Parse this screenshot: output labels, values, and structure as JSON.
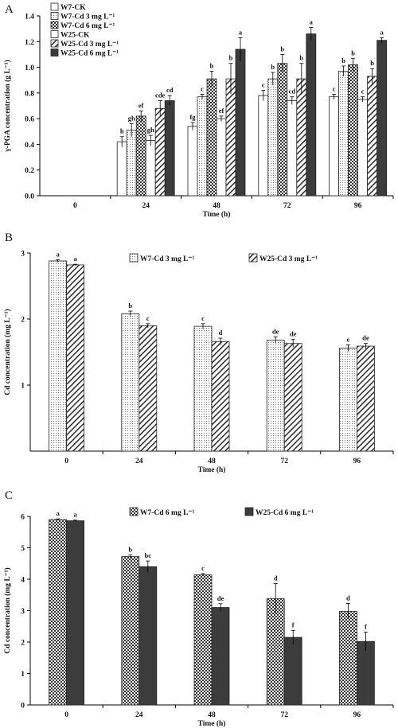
{
  "chart_data": [
    {
      "panel": "A",
      "type": "bar",
      "categories": [
        "0",
        "24",
        "48",
        "72",
        "96"
      ],
      "xlabel": "Time (h)",
      "ylabel": "γ-PGA concentration (g L⁻¹)",
      "ylim": [
        0,
        1.4
      ],
      "yticks": [
        "0.0",
        "0.2",
        "0.4",
        "0.6",
        "0.8",
        "1.0",
        "1.2",
        "1.4"
      ],
      "legend_position": "top-left",
      "series": [
        {
          "name": "W7-CK",
          "pattern": "white",
          "values": [
            null,
            0.42,
            0.54,
            0.78,
            0.77
          ],
          "errors": [
            null,
            0.04,
            0.03,
            0.04,
            0.02
          ],
          "labels": [
            "",
            "h",
            "fg",
            "c",
            "c"
          ]
        },
        {
          "name": "W7-Cd 3 mg L⁻¹",
          "pattern": "dots",
          "values": [
            null,
            0.51,
            0.77,
            0.91,
            0.97
          ],
          "errors": [
            null,
            0.05,
            0.02,
            0.05,
            0.04
          ],
          "labels": [
            "",
            "gh",
            "c",
            "b",
            "b"
          ]
        },
        {
          "name": "W7-Cd 6 mg L⁻¹",
          "pattern": "grid",
          "values": [
            null,
            0.62,
            0.91,
            1.03,
            1.02
          ],
          "errors": [
            null,
            0.04,
            0.06,
            0.07,
            0.05
          ],
          "labels": [
            "",
            "ef",
            "b",
            "b",
            "b"
          ]
        },
        {
          "name": "W25-CK",
          "pattern": "white",
          "values": [
            null,
            0.43,
            0.6,
            0.74,
            0.75
          ],
          "errors": [
            null,
            0.04,
            0.02,
            0.03,
            0.02
          ],
          "labels": [
            "",
            "gh",
            "ef",
            "cd",
            "c"
          ]
        },
        {
          "name": "W25-Cd 3 mg L⁻¹",
          "pattern": "hatch",
          "values": [
            null,
            0.68,
            0.91,
            0.91,
            0.93
          ],
          "errors": [
            null,
            0.06,
            0.12,
            0.12,
            0.06
          ],
          "labels": [
            "",
            "cde",
            "b",
            "b",
            "b"
          ]
        },
        {
          "name": "W25-Cd 6 mg L⁻¹",
          "pattern": "dark",
          "values": [
            null,
            0.74,
            1.14,
            1.26,
            1.21
          ],
          "errors": [
            null,
            0.04,
            0.09,
            0.05,
            0.02
          ],
          "labels": [
            "",
            "cd",
            "a",
            "a",
            "a"
          ]
        }
      ]
    },
    {
      "panel": "B",
      "type": "bar",
      "categories": [
        "0",
        "24",
        "48",
        "72",
        "96"
      ],
      "xlabel": "Time (h)",
      "ylabel": "Cd concentration (mg L⁻¹)",
      "ylim": [
        0,
        3
      ],
      "yticks": [
        "1",
        "2",
        "3"
      ],
      "legend_position": "top-right",
      "series": [
        {
          "name": "W7-Cd 3 mg L⁻¹",
          "pattern": "dots",
          "values": [
            2.88,
            2.08,
            1.89,
            1.68,
            1.56
          ],
          "errors": [
            0.02,
            0.04,
            0.04,
            0.05,
            0.05
          ],
          "labels": [
            "a",
            "b",
            "c",
            "de",
            "e"
          ]
        },
        {
          "name": "W25-Cd 3 mg L⁻¹",
          "pattern": "hatch",
          "values": [
            2.82,
            1.9,
            1.66,
            1.63,
            1.59
          ],
          "errors": [
            0.01,
            0.03,
            0.05,
            0.06,
            0.04
          ],
          "labels": [
            "a",
            "c",
            "d",
            "de",
            "de"
          ]
        }
      ]
    },
    {
      "panel": "C",
      "type": "bar",
      "categories": [
        "0",
        "24",
        "48",
        "72",
        "96"
      ],
      "xlabel": "Time (h)",
      "ylabel": "Cd concentration (mg L⁻¹)",
      "ylim": [
        0,
        6
      ],
      "yticks": [
        "0",
        "1",
        "2",
        "3",
        "4",
        "5",
        "6"
      ],
      "legend_position": "top-right",
      "series": [
        {
          "name": "W7-Cd 6 mg L⁻¹",
          "pattern": "grid",
          "values": [
            5.9,
            4.72,
            4.14,
            3.38,
            2.98
          ],
          "errors": [
            0.02,
            0.05,
            0.04,
            0.48,
            0.25
          ],
          "labels": [
            "a",
            "b",
            "c",
            "d",
            "d"
          ]
        },
        {
          "name": "W25-Cd 6 mg L⁻¹",
          "pattern": "dark",
          "values": [
            5.86,
            4.4,
            3.1,
            2.15,
            2.02
          ],
          "errors": [
            0.02,
            0.18,
            0.12,
            0.22,
            0.3
          ],
          "labels": [
            "a",
            "bc",
            "de",
            "f",
            "f"
          ]
        }
      ]
    }
  ]
}
